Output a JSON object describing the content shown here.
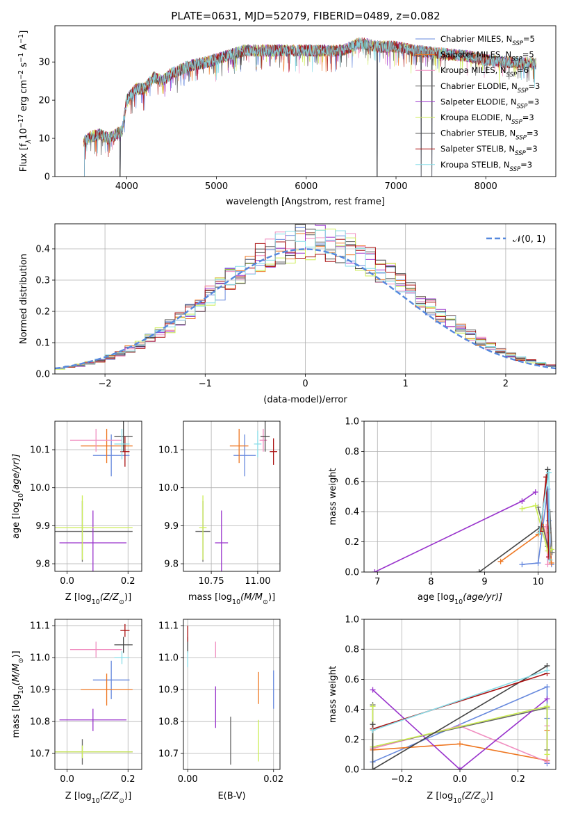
{
  "title": "PLATE=0631, MJD=52079, FIBERID=0489, z=0.082",
  "colors": [
    "#6688dd",
    "#ee7722",
    "#f08ec0",
    "#666666",
    "#9933cc",
    "#ccee55",
    "#444444",
    "#aa1111",
    "#88dde8"
  ],
  "chart_data": [
    {
      "id": "spectrum",
      "type": "line",
      "xlabel": "wavelength [Angstrom, rest frame]",
      "ylabel_main": "Flux [f",
      "ylabel_sub": "λ",
      "ylabel_mid": "10",
      "ylabel_exp": "−17",
      "ylabel_tail": " erg cm",
      "ylabel_exp2": "−2",
      "ylabel_tail2": " s",
      "ylabel_exp3": "−1",
      "ylabel_tail3": " A",
      "ylabel_exp4": "−1",
      "ylabel_end": "]",
      "xlim": [
        3200,
        8780
      ],
      "ylim": [
        0,
        39.5
      ],
      "xticks": [
        4000,
        5000,
        6000,
        7000,
        8000
      ],
      "yticks": [
        0,
        10,
        20,
        30
      ],
      "continuum": [
        [
          3520,
          9
        ],
        [
          3600,
          10.5
        ],
        [
          3700,
          11
        ],
        [
          3800,
          10
        ],
        [
          3880,
          11
        ],
        [
          3950,
          12
        ],
        [
          4000,
          20
        ],
        [
          4100,
          23
        ],
        [
          4200,
          23
        ],
        [
          4300,
          26
        ],
        [
          4400,
          25
        ],
        [
          4500,
          27
        ],
        [
          4700,
          29
        ],
        [
          4900,
          30
        ],
        [
          5100,
          31.5
        ],
        [
          5300,
          33
        ],
        [
          5500,
          33
        ],
        [
          5800,
          33
        ],
        [
          6000,
          33
        ],
        [
          6200,
          33
        ],
        [
          6400,
          33
        ],
        [
          6600,
          35
        ],
        [
          6800,
          34
        ],
        [
          7000,
          34
        ],
        [
          7200,
          33
        ],
        [
          7400,
          32.5
        ],
        [
          7600,
          32
        ],
        [
          7800,
          31.5
        ],
        [
          8000,
          30.5
        ],
        [
          8200,
          30
        ],
        [
          8400,
          29.8
        ],
        [
          8560,
          29.5
        ]
      ],
      "dips": [
        [
          3925,
          0
        ],
        [
          5200,
          27
        ],
        [
          5890,
          29
        ],
        [
          6790,
          0
        ],
        [
          7280,
          0
        ],
        [
          7400,
          0
        ]
      ],
      "legend": [
        {
          "name": "Chabrier MILES, N",
          "sub": "SSP",
          "val": "=5"
        },
        {
          "name": "Salpeter MILES, N",
          "sub": "SSP",
          "val": "=5"
        },
        {
          "name": "Kroupa MILES, N",
          "sub": "SSP",
          "val": "=6"
        },
        {
          "name": "Chabrier ELODIE, N",
          "sub": "SSP",
          "val": "=3"
        },
        {
          "name": "Salpeter ELODIE, N",
          "sub": "SSP",
          "val": "=3"
        },
        {
          "name": "Kroupa ELODIE, N",
          "sub": "SSP",
          "val": "=3"
        },
        {
          "name": "Chabrier STELIB, N",
          "sub": "SSP",
          "val": "=3"
        },
        {
          "name": "Salpeter STELIB, N",
          "sub": "SSP",
          "val": "=3"
        },
        {
          "name": "Kroupa STELIB, N",
          "sub": "SSP",
          "val": "=3"
        }
      ]
    },
    {
      "id": "residuals",
      "type": "step-histogram",
      "xlabel": "(data-model)/error",
      "ylabel": "Normed distribution",
      "xlim": [
        -2.5,
        2.5
      ],
      "ylim": [
        0,
        0.48
      ],
      "xticks": [
        -2,
        -1,
        0,
        1,
        2
      ],
      "yticks": [
        0.0,
        0.1,
        0.2,
        0.3,
        0.4
      ],
      "bin_width": 0.1,
      "normal_label": "𝒩(0, 1)",
      "normal_mean": 0,
      "normal_sigma": 1
    },
    {
      "id": "age-vs-Z",
      "type": "errorbar",
      "xlabel": "Z [log",
      "xlabel_sub": "10",
      "xlabel_tail": "(Z/Z",
      "xlabel_sub2": "⊙",
      "xlabel_end": ")]",
      "ylabel": "age  [log",
      "ylabel_sub": "10",
      "ylabel_tail": "(age/yr)]",
      "xlim": [
        -0.04,
        0.245
      ],
      "ylim": [
        9.78,
        10.175
      ],
      "xticks": [
        0.0,
        0.2
      ],
      "yticks": [
        9.8,
        9.9,
        10.0,
        10.1
      ],
      "points": [
        {
          "x": 0.145,
          "xe": 0.06,
          "y": 10.085,
          "ye": 0.055
        },
        {
          "x": 0.13,
          "xe": 0.085,
          "y": 10.11,
          "ye": 0.045
        },
        {
          "x": 0.095,
          "xe": 0.085,
          "y": 10.125,
          "ye": 0.03
        },
        {
          "x": 0.05,
          "xe": 0.165,
          "y": 9.885,
          "ye": 0.08
        },
        {
          "x": 0.085,
          "xe": 0.11,
          "y": 9.855,
          "ye": 0.085
        },
        {
          "x": 0.05,
          "xe": 0.165,
          "y": 9.895,
          "ye": 0.085
        },
        {
          "x": 0.185,
          "xe": 0.03,
          "y": 10.135,
          "ye": 0.04
        },
        {
          "x": 0.19,
          "xe": 0.015,
          "y": 10.095,
          "ye": 0.04
        },
        {
          "x": 0.18,
          "xe": 0.025,
          "y": 10.115,
          "ye": 0.04
        }
      ]
    },
    {
      "id": "age-vs-mass",
      "type": "errorbar",
      "xlabel": "mass [log",
      "xlabel_sub": "10",
      "xlabel_tail": "(M/M",
      "xlabel_sub2": "⊙",
      "xlabel_end": ")]",
      "xlim": [
        10.6,
        11.12
      ],
      "ylim": [
        9.78,
        10.175
      ],
      "xticks": [
        10.75,
        11.0
      ],
      "yticks": [
        9.8,
        9.9,
        10.0,
        10.1
      ],
      "points": [
        {
          "x": 10.93,
          "xe": 0.06,
          "y": 10.085,
          "ye": 0.055
        },
        {
          "x": 10.9,
          "xe": 0.05,
          "y": 10.11,
          "ye": 0.045
        },
        {
          "x": 11.03,
          "xe": 0.02,
          "y": 10.125,
          "ye": 0.03
        },
        {
          "x": 10.705,
          "xe": 0.04,
          "y": 9.885,
          "ye": 0.08
        },
        {
          "x": 10.805,
          "xe": 0.035,
          "y": 9.855,
          "ye": 0.085
        },
        {
          "x": 10.705,
          "xe": 0.02,
          "y": 9.895,
          "ye": 0.085
        },
        {
          "x": 11.04,
          "xe": 0.025,
          "y": 10.135,
          "ye": 0.04
        },
        {
          "x": 11.085,
          "xe": 0.02,
          "y": 10.095,
          "ye": 0.035
        },
        {
          "x": 11.0,
          "xe": 0.02,
          "y": 10.115,
          "ye": 0.035
        }
      ]
    },
    {
      "id": "weight-vs-age",
      "type": "line",
      "xlabel": "age  [log",
      "xlabel_sub": "10",
      "xlabel_tail": "(age/yr)]",
      "ylabel": "mass weight",
      "xlim": [
        6.75,
        10.33
      ],
      "ylim": [
        0,
        1.0
      ],
      "xticks": [
        7,
        8,
        9,
        10
      ],
      "yticks": [
        0.0,
        0.2,
        0.4,
        0.6,
        0.8,
        1.0
      ],
      "series": [
        {
          "points": [
            [
              9.7,
              0.05
            ],
            [
              10.0,
              0.06
            ],
            [
              10.18,
              0.55
            ],
            [
              10.2,
              0.34
            ],
            [
              10.25,
              0.05
            ]
          ]
        },
        {
          "points": [
            [
              9.3,
              0.07
            ],
            [
              10.0,
              0.25
            ],
            [
              10.1,
              0.3
            ],
            [
              10.25,
              0.06
            ],
            [
              10.2,
              0.26
            ]
          ]
        },
        {
          "points": [
            [
              10.15,
              0.3
            ],
            [
              10.18,
              0.05
            ],
            [
              10.2,
              0.29
            ],
            [
              10.2,
              0.1
            ]
          ]
        },
        {
          "points": [
            [
              10.0,
              0.43
            ],
            [
              10.18,
              0.17
            ],
            [
              10.22,
              0.4
            ],
            [
              10.26,
              0.13
            ]
          ]
        },
        {
          "points": [
            [
              6.95,
              0.0
            ],
            [
              9.7,
              0.47
            ],
            [
              9.95,
              0.53
            ]
          ]
        },
        {
          "points": [
            [
              9.7,
              0.42
            ],
            [
              9.95,
              0.44
            ],
            [
              10.18,
              0.14
            ],
            [
              10.25,
              0.15
            ]
          ]
        },
        {
          "points": [
            [
              8.9,
              0.0
            ],
            [
              10.05,
              0.3
            ],
            [
              10.18,
              0.68
            ]
          ]
        },
        {
          "points": [
            [
              10.05,
              0.27
            ],
            [
              10.15,
              0.63
            ],
            [
              10.2,
              0.1
            ]
          ]
        },
        {
          "points": [
            [
              10.02,
              0.26
            ],
            [
              10.2,
              0.66
            ],
            [
              10.22,
              0.08
            ]
          ]
        }
      ]
    },
    {
      "id": "mass-vs-Z",
      "type": "errorbar",
      "xlabel": "Z [log",
      "xlabel_sub": "10",
      "xlabel_tail": "(Z/Z",
      "xlabel_sub2": "⊙",
      "xlabel_end": ")]",
      "ylabel": "mass [log",
      "ylabel_sub": "10",
      "ylabel_tail": "(M/M",
      "ylabel_sub2": "⊙",
      "ylabel_end": ")]",
      "xlim": [
        -0.04,
        0.245
      ],
      "ylim": [
        10.65,
        11.12
      ],
      "xticks": [
        0.0,
        0.2
      ],
      "yticks": [
        10.7,
        10.8,
        10.9,
        11.0,
        11.1
      ],
      "points": [
        {
          "x": 0.145,
          "xe": 0.06,
          "y": 10.93,
          "ye": 0.06
        },
        {
          "x": 0.13,
          "xe": 0.085,
          "y": 10.9,
          "ye": 0.05
        },
        {
          "x": 0.095,
          "xe": 0.085,
          "y": 11.025,
          "ye": 0.025
        },
        {
          "x": 0.05,
          "xe": 0.165,
          "y": 10.705,
          "ye": 0.04
        },
        {
          "x": 0.085,
          "xe": 0.11,
          "y": 10.805,
          "ye": 0.035
        },
        {
          "x": 0.05,
          "xe": 0.165,
          "y": 10.705,
          "ye": 0.02
        },
        {
          "x": 0.185,
          "xe": 0.03,
          "y": 11.04,
          "ye": 0.025
        },
        {
          "x": 0.19,
          "xe": 0.015,
          "y": 11.085,
          "ye": 0.02
        },
        {
          "x": 0.18,
          "xe": 0.025,
          "y": 11.0,
          "ye": 0.02
        }
      ]
    },
    {
      "id": "mass-vs-EBV",
      "type": "errorbar",
      "xlabel": "E(B-V)",
      "xlim": [
        -0.001,
        0.0215
      ],
      "ylim": [
        10.65,
        11.12
      ],
      "xticks": [
        0.0,
        0.02
      ],
      "yticks": [
        10.7,
        10.8,
        10.9,
        11.0,
        11.1
      ],
      "points": [
        {
          "x": 0.02,
          "xe": 0,
          "y": 10.9,
          "ye": 0.06
        },
        {
          "x": 0.0165,
          "xe": 0,
          "y": 10.905,
          "ye": 0.05
        },
        {
          "x": 0.0065,
          "xe": 0,
          "y": 11.025,
          "ye": 0.025
        },
        {
          "x": 0.01,
          "xe": 0,
          "y": 10.74,
          "ye": 0.075
        },
        {
          "x": 0.0065,
          "xe": 0,
          "y": 10.845,
          "ye": 0.065
        },
        {
          "x": 0.0165,
          "xe": 0,
          "y": 10.74,
          "ye": 0.065
        },
        {
          "x": 0.0,
          "xe": 0,
          "y": 11.04,
          "ye": 0.025
        },
        {
          "x": 0.0,
          "xe": 0,
          "y": 11.075,
          "ye": 0.025
        },
        {
          "x": 0.0,
          "xe": 0,
          "y": 10.995,
          "ye": 0.025
        }
      ]
    },
    {
      "id": "weight-vs-Z",
      "type": "line",
      "xlabel": "Z [log",
      "xlabel_sub": "10",
      "xlabel_tail": "(Z/Z",
      "xlabel_sub2": "⊙",
      "xlabel_end": ")]",
      "ylabel": "mass weight",
      "xlim": [
        -0.33,
        0.33
      ],
      "ylim": [
        0,
        1.0
      ],
      "xticks": [
        -0.2,
        0.0,
        0.2
      ],
      "yticks": [
        0.0,
        0.2,
        0.4,
        0.6,
        0.8,
        1.0
      ],
      "series": [
        {
          "points": [
            [
              -0.3,
              0.05
            ],
            [
              0.3,
              0.55
            ],
            [
              0.3,
              0.34
            ],
            [
              0.3,
              0.06
            ],
            [
              0.3,
              0.04
            ]
          ]
        },
        {
          "points": [
            [
              -0.3,
              0.13
            ],
            [
              0.0,
              0.17
            ],
            [
              0.3,
              0.06
            ],
            [
              0.3,
              0.26
            ]
          ]
        },
        {
          "points": [
            [
              -0.3,
              0.14
            ],
            [
              0.0,
              0.29
            ],
            [
              0.3,
              0.05
            ],
            [
              0.3,
              0.29
            ]
          ]
        },
        {
          "points": [
            [
              -0.3,
              0.43
            ],
            [
              -0.3,
              0.15
            ],
            [
              0.3,
              0.41
            ],
            [
              0.3,
              0.13
            ]
          ]
        },
        {
          "points": [
            [
              -0.3,
              0.53
            ],
            [
              0.0,
              0.0
            ],
            [
              0.3,
              0.47
            ]
          ]
        },
        {
          "points": [
            [
              -0.3,
              0.42
            ],
            [
              -0.3,
              0.15
            ],
            [
              0.3,
              0.42
            ],
            [
              0.3,
              0.1
            ]
          ]
        },
        {
          "points": [
            [
              -0.3,
              0.3
            ],
            [
              -0.3,
              0.0
            ],
            [
              0.3,
              0.69
            ]
          ]
        },
        {
          "points": [
            [
              -0.3,
              0.27
            ],
            [
              0.3,
              0.64
            ]
          ]
        },
        {
          "points": [
            [
              -0.3,
              0.26
            ],
            [
              0.3,
              0.66
            ]
          ]
        }
      ]
    }
  ]
}
